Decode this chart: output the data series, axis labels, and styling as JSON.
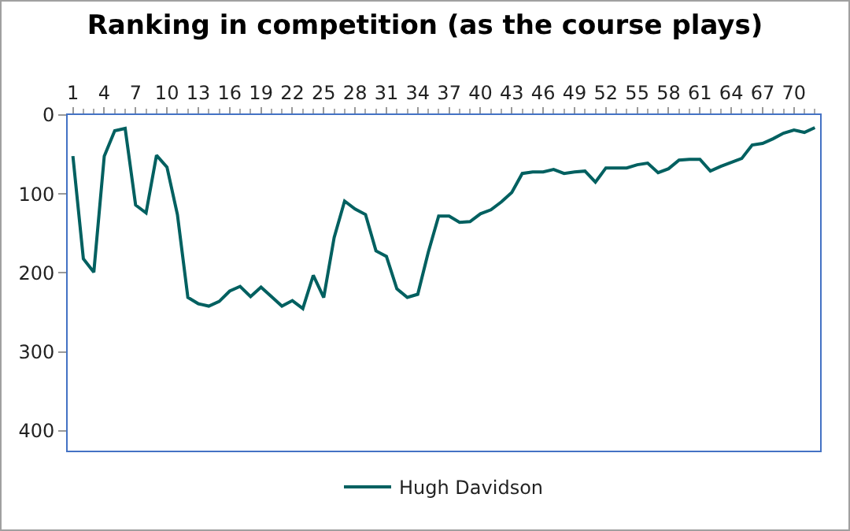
{
  "chart_data": {
    "type": "line",
    "title": "Ranking in competition (as the course plays)",
    "x": [
      1,
      2,
      3,
      4,
      5,
      6,
      7,
      8,
      9,
      10,
      11,
      12,
      13,
      14,
      15,
      16,
      17,
      18,
      19,
      20,
      21,
      22,
      23,
      24,
      25,
      26,
      27,
      28,
      29,
      30,
      31,
      32,
      33,
      34,
      35,
      36,
      37,
      38,
      39,
      40,
      41,
      42,
      43,
      44,
      45,
      46,
      47,
      48,
      49,
      50,
      51,
      52,
      53,
      54,
      55,
      56,
      57,
      58,
      59,
      60,
      61,
      62,
      63,
      64,
      65,
      66,
      67,
      68,
      69,
      70,
      71,
      72
    ],
    "series": [
      {
        "name": "Hugh Davidson",
        "color": "#006060",
        "values": [
          52,
          182,
          199,
          52,
          20,
          17,
          114,
          124,
          51,
          66,
          126,
          231,
          239,
          242,
          236,
          223,
          217,
          230,
          218,
          230,
          242,
          235,
          245,
          203,
          231,
          155,
          109,
          119,
          126,
          172,
          179,
          220,
          231,
          227,
          174,
          128,
          128,
          136,
          135,
          125,
          120,
          110,
          98,
          74,
          72,
          72,
          69,
          74,
          72,
          71,
          85,
          67,
          67,
          67,
          63,
          61,
          73,
          68,
          57,
          56,
          56,
          71,
          65,
          60,
          55,
          38,
          36,
          30,
          23,
          19,
          22,
          16
        ]
      }
    ],
    "xlim": [
      0.5,
      72.5
    ],
    "xticks": [
      1,
      4,
      7,
      10,
      13,
      16,
      19,
      22,
      25,
      28,
      31,
      34,
      37,
      40,
      43,
      46,
      49,
      52,
      55,
      58,
      61,
      64,
      67,
      70
    ],
    "ylim": [
      425,
      0
    ],
    "yticks": [
      0,
      100,
      200,
      300,
      400
    ],
    "grid": false,
    "legend": "bottom",
    "marker": "none",
    "line_style": "solid"
  }
}
